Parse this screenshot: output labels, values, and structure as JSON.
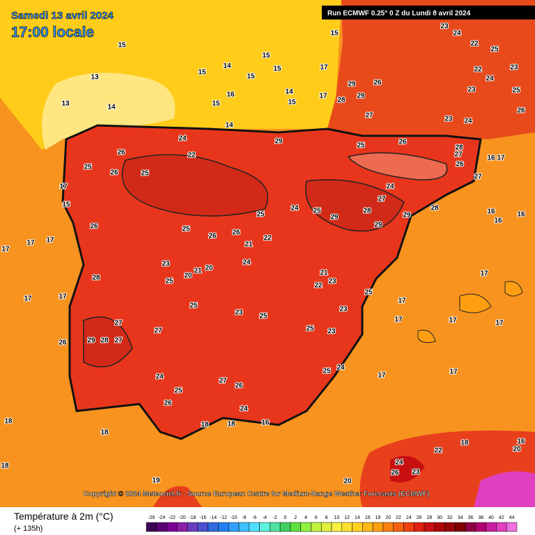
{
  "header": {
    "date": "Samedi 13 avril 2024",
    "time": "17:00 locale",
    "run": "Run ECMWF 0.25° 0 Z du Lundi 8 avril 2024"
  },
  "map": {
    "labels": [
      15,
      14,
      15,
      15,
      15,
      15,
      13,
      16,
      14,
      15,
      13,
      14,
      15,
      14,
      17,
      15,
      24,
      29,
      25,
      26,
      26,
      22,
      25,
      26,
      25,
      24,
      27,
      28,
      29,
      29,
      28,
      29,
      25,
      24,
      25,
      26,
      25,
      26,
      26,
      22,
      21,
      24,
      28,
      23,
      25,
      20,
      21,
      20,
      21,
      22,
      23,
      25,
      23,
      25,
      23,
      25,
      27,
      27,
      29,
      28,
      27,
      26,
      25,
      23,
      24,
      25,
      24,
      27,
      26,
      25,
      26,
      24,
      18,
      18,
      16,
      17,
      17,
      17,
      17,
      17,
      17,
      17,
      17,
      17,
      17,
      17,
      17,
      16,
      16,
      16,
      16,
      17,
      18,
      18,
      18,
      19,
      20,
      22,
      24,
      26,
      23,
      18,
      16,
      20,
      23,
      24,
      23,
      22,
      25,
      22,
      23,
      23,
      24,
      25,
      26,
      24,
      28,
      27,
      26,
      27,
      29,
      29,
      26,
      28,
      27,
      17,
      17,
      15
    ]
  },
  "copyright": "Copyright © 2024 Meteociel.fr - Source European Centre for Medium-Range Weather Forecasts (ECMWF)",
  "legend": {
    "title": "Température à 2m (°C)",
    "lead": "(+ 135h)",
    "ticks": [
      -26,
      -24,
      -22,
      -20,
      -18,
      -16,
      -14,
      -12,
      -10,
      -8,
      -6,
      -4,
      -2,
      0,
      2,
      4,
      6,
      8,
      10,
      12,
      14,
      16,
      18,
      20,
      22,
      24,
      26,
      28,
      30,
      32,
      34,
      36,
      38,
      40,
      42,
      44
    ],
    "colors": [
      "#3d0052",
      "#5a0078",
      "#7a0096",
      "#8c1fa8",
      "#6a3cc0",
      "#4a50d0",
      "#2f6be0",
      "#2080f0",
      "#30a0ff",
      "#40c0ff",
      "#50dfff",
      "#60f0e0",
      "#50e0a0",
      "#40d060",
      "#60e040",
      "#90f040",
      "#c0f040",
      "#e0f040",
      "#f8f040",
      "#ffe030",
      "#ffd020",
      "#ffb818",
      "#ff9e10",
      "#fa8010",
      "#f56010",
      "#ee4010",
      "#e02010",
      "#c81010",
      "#b00808",
      "#980404",
      "#800000",
      "#900040",
      "#b00070",
      "#c820a0",
      "#e040c0",
      "#f070e0"
    ]
  }
}
